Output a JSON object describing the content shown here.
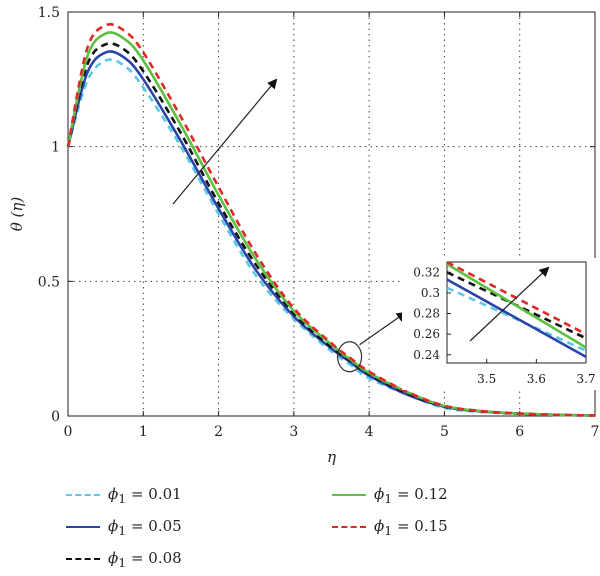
{
  "chart_data": {
    "type": "line",
    "title": "",
    "xlabel": "η",
    "ylabel": "θ (η)",
    "xlim": [
      0,
      7
    ],
    "ylim": [
      0,
      1.5
    ],
    "xticks": [
      "0",
      "1",
      "2",
      "3",
      "4",
      "5",
      "6",
      "7"
    ],
    "yticks": [
      "0",
      "0.5",
      "1",
      "1.5"
    ],
    "grid": true,
    "x": [
      0,
      0.25,
      0.5,
      0.75,
      1,
      1.5,
      2,
      2.5,
      3,
      3.5,
      3.75,
      4,
      4.5,
      5,
      5.5,
      6,
      6.5,
      7
    ],
    "series": [
      {
        "name": "ϕ1 = 0.01",
        "color": "#5bc8e8",
        "dash": "dashed",
        "values": [
          1.0,
          1.24,
          1.32,
          1.3,
          1.22,
          1.0,
          0.75,
          0.52,
          0.36,
          0.24,
          0.19,
          0.14,
          0.08,
          0.03,
          0.015,
          0.008,
          0.004,
          0.002
        ]
      },
      {
        "name": "ϕ1 = 0.05",
        "color": "#2b44a8",
        "dash": "solid",
        "values": [
          1.0,
          1.27,
          1.35,
          1.33,
          1.25,
          1.02,
          0.77,
          0.54,
          0.37,
          0.25,
          0.2,
          0.15,
          0.08,
          0.035,
          0.017,
          0.009,
          0.004,
          0.002
        ]
      },
      {
        "name": "ϕ1 = 0.08",
        "color": "#111111",
        "dash": "dashed",
        "values": [
          1.0,
          1.3,
          1.38,
          1.36,
          1.28,
          1.05,
          0.79,
          0.56,
          0.38,
          0.255,
          0.205,
          0.155,
          0.085,
          0.035,
          0.017,
          0.009,
          0.004,
          0.002
        ]
      },
      {
        "name": "ϕ1 = 0.12",
        "color": "#5cc040",
        "dash": "solid",
        "values": [
          1.0,
          1.33,
          1.42,
          1.4,
          1.32,
          1.08,
          0.82,
          0.58,
          0.39,
          0.265,
          0.21,
          0.16,
          0.09,
          0.037,
          0.018,
          0.009,
          0.004,
          0.002
        ]
      },
      {
        "name": "ϕ1 = 0.15",
        "color": "#e02828",
        "dash": "dashed",
        "values": [
          1.0,
          1.36,
          1.45,
          1.43,
          1.35,
          1.11,
          0.85,
          0.6,
          0.4,
          0.27,
          0.215,
          0.165,
          0.09,
          0.038,
          0.018,
          0.009,
          0.004,
          0.002
        ]
      }
    ],
    "inset": {
      "xlim": [
        3.42,
        3.7
      ],
      "ylim": [
        0.232,
        0.33
      ],
      "xticks": [
        "3.5",
        "3.6",
        "3.7"
      ],
      "yticks": [
        "0.24",
        "0.26",
        "0.28",
        "0.3",
        "0.32"
      ],
      "x": [
        3.42,
        3.7
      ],
      "series": [
        {
          "values": [
            0.305,
            0.244
          ]
        },
        {
          "values": [
            0.313,
            0.238
          ]
        },
        {
          "values": [
            0.32,
            0.256
          ]
        },
        {
          "values": [
            0.328,
            0.247
          ]
        },
        {
          "values": [
            0.33,
            0.26
          ]
        }
      ]
    },
    "legend_placement": "bottom"
  },
  "legend": {
    "items": [
      {
        "symbol": "ϕ",
        "sub": "1",
        "rest": " = 0.01"
      },
      {
        "symbol": "ϕ",
        "sub": "1",
        "rest": " = 0.05"
      },
      {
        "symbol": "ϕ",
        "sub": "1",
        "rest": " = 0.08"
      },
      {
        "symbol": "ϕ",
        "sub": "1",
        "rest": " = 0.12"
      },
      {
        "symbol": "ϕ",
        "sub": "1",
        "rest": " = 0.15"
      }
    ]
  }
}
